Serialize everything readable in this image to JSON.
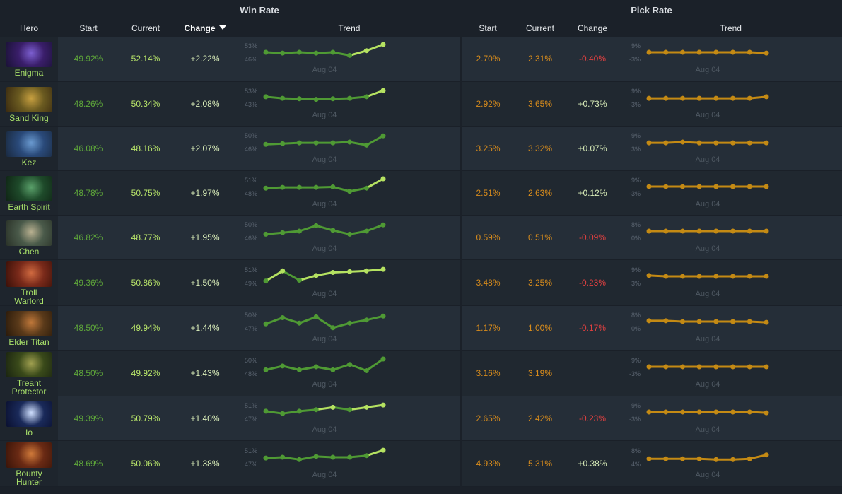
{
  "header": {
    "win_rate_group": "Win Rate",
    "pick_rate_group": "Pick Rate",
    "hero": "Hero",
    "start": "Start",
    "current": "Current",
    "change": "Change",
    "trend": "Trend"
  },
  "colors": {
    "win_line": "#4f9a34",
    "win_dot_highlight": "#b5e261",
    "pick_line": "#c48a14",
    "positive": "#d8ecb8",
    "negative": "#e04040"
  },
  "rows": [
    {
      "hero": "Enigma",
      "portrait": [
        "#3a1e6a",
        "#7c5fd0",
        "#1a1236"
      ],
      "wr_start": "49.92%",
      "wr_current": "52.14%",
      "wr_change": "+2.22%",
      "wr_hi": "53%",
      "wr_lo": "46%",
      "wr_date": "Aug 04",
      "wr_points": [
        0.5,
        0.45,
        0.5,
        0.45,
        0.5,
        0.3,
        0.6,
        1.0
      ],
      "wr_hot": [
        6,
        7
      ],
      "pr_start": "2.70%",
      "pr_current": "2.31%",
      "pr_change": "-0.40%",
      "pr_change_sign": "neg",
      "pr_hi": "9%",
      "pr_lo": "-3%",
      "pr_date": "Aug 04",
      "pr_points": [
        0.5,
        0.5,
        0.5,
        0.5,
        0.5,
        0.5,
        0.5,
        0.45
      ]
    },
    {
      "hero": "Sand King",
      "portrait": [
        "#6a5a20",
        "#c8a040",
        "#3a2a10"
      ],
      "wr_start": "48.26%",
      "wr_current": "50.34%",
      "wr_change": "+2.08%",
      "wr_hi": "53%",
      "wr_lo": "43%",
      "wr_date": "Aug 04",
      "wr_points": [
        0.55,
        0.45,
        0.42,
        0.38,
        0.42,
        0.45,
        0.55,
        0.95
      ],
      "wr_hot": [
        7
      ],
      "pr_start": "2.92%",
      "pr_current": "3.65%",
      "pr_change": "+0.73%",
      "pr_change_sign": "pos",
      "pr_hi": "9%",
      "pr_lo": "-3%",
      "pr_date": "Aug 04",
      "pr_points": [
        0.45,
        0.45,
        0.45,
        0.45,
        0.45,
        0.45,
        0.45,
        0.55
      ]
    },
    {
      "hero": "Kez",
      "portrait": [
        "#2a4a7a",
        "#6a9ad0",
        "#1a2a40"
      ],
      "wr_start": "46.08%",
      "wr_current": "48.16%",
      "wr_change": "+2.07%",
      "wr_hi": "50%",
      "wr_lo": "46%",
      "wr_date": "Aug 04",
      "wr_points": [
        0.35,
        0.4,
        0.45,
        0.45,
        0.45,
        0.5,
        0.3,
        0.9
      ],
      "wr_hot": [],
      "pr_start": "3.25%",
      "pr_current": "3.32%",
      "pr_change": "+0.07%",
      "pr_change_sign": "pos",
      "pr_hi": "9%",
      "pr_lo": "3%",
      "pr_date": "Aug 04",
      "pr_points": [
        0.45,
        0.45,
        0.5,
        0.45,
        0.45,
        0.45,
        0.45,
        0.45
      ]
    },
    {
      "hero": "Earth Spirit",
      "portrait": [
        "#1e4a2a",
        "#5aa06a",
        "#0f2414"
      ],
      "wr_start": "48.78%",
      "wr_current": "50.75%",
      "wr_change": "+1.97%",
      "wr_hi": "51%",
      "wr_lo": "48%",
      "wr_date": "Aug 04",
      "wr_points": [
        0.4,
        0.45,
        0.45,
        0.45,
        0.48,
        0.2,
        0.4,
        1.0
      ],
      "wr_hot": [
        7
      ],
      "pr_start": "2.51%",
      "pr_current": "2.63%",
      "pr_change": "+0.12%",
      "pr_change_sign": "pos",
      "pr_hi": "9%",
      "pr_lo": "-3%",
      "pr_date": "Aug 04",
      "pr_points": [
        0.5,
        0.5,
        0.5,
        0.5,
        0.5,
        0.5,
        0.5,
        0.5
      ]
    },
    {
      "hero": "Chen",
      "portrait": [
        "#4a5a4a",
        "#b8b090",
        "#2a3228"
      ],
      "wr_start": "46.82%",
      "wr_current": "48.77%",
      "wr_change": "+1.95%",
      "wr_hi": "50%",
      "wr_lo": "46%",
      "wr_date": "Aug 04",
      "wr_points": [
        0.3,
        0.4,
        0.5,
        0.85,
        0.55,
        0.3,
        0.5,
        0.9
      ],
      "wr_hot": [],
      "pr_start": "0.59%",
      "pr_current": "0.51%",
      "pr_change": "-0.09%",
      "pr_change_sign": "neg",
      "pr_hi": "8%",
      "pr_lo": "0%",
      "pr_date": "Aug 04",
      "pr_points": [
        0.5,
        0.5,
        0.5,
        0.5,
        0.5,
        0.5,
        0.5,
        0.5
      ]
    },
    {
      "hero": "Troll Warlord",
      "portrait": [
        "#7a2a1a",
        "#d06a40",
        "#3a1008"
      ],
      "wr_start": "49.36%",
      "wr_current": "50.86%",
      "wr_change": "+1.50%",
      "wr_hi": "51%",
      "wr_lo": "49%",
      "wr_date": "Aug 04",
      "wr_points": [
        0.2,
        0.85,
        0.25,
        0.55,
        0.75,
        0.8,
        0.85,
        0.95
      ],
      "wr_hot": [
        1,
        3,
        4,
        5,
        6,
        7
      ],
      "pr_start": "3.48%",
      "pr_current": "3.25%",
      "pr_change": "-0.23%",
      "pr_change_sign": "neg",
      "pr_hi": "9%",
      "pr_lo": "3%",
      "pr_date": "Aug 04",
      "pr_points": [
        0.55,
        0.5,
        0.5,
        0.5,
        0.5,
        0.5,
        0.5,
        0.5
      ]
    },
    {
      "hero": "Elder Titan",
      "portrait": [
        "#5a3a1a",
        "#c0783a",
        "#2a1a0a"
      ],
      "wr_start": "48.50%",
      "wr_current": "49.94%",
      "wr_change": "+1.44%",
      "wr_hi": "50%",
      "wr_lo": "47%",
      "wr_date": "Aug 04",
      "wr_points": [
        0.35,
        0.75,
        0.4,
        0.8,
        0.1,
        0.4,
        0.6,
        0.85
      ],
      "wr_hot": [],
      "pr_start": "1.17%",
      "pr_current": "1.00%",
      "pr_change": "-0.17%",
      "pr_change_sign": "neg",
      "pr_hi": "8%",
      "pr_lo": "0%",
      "pr_date": "Aug 04",
      "pr_points": [
        0.55,
        0.55,
        0.5,
        0.5,
        0.5,
        0.5,
        0.5,
        0.45
      ]
    },
    {
      "hero": "Treant Protector",
      "portrait": [
        "#3a4a1a",
        "#a0a050",
        "#1a2410"
      ],
      "wr_start": "48.50%",
      "wr_current": "49.92%",
      "wr_change": "+1.43%",
      "wr_hi": "50%",
      "wr_lo": "48%",
      "wr_date": "Aug 04",
      "wr_points": [
        0.3,
        0.55,
        0.3,
        0.5,
        0.3,
        0.65,
        0.25,
        1.0
      ],
      "wr_hot": [],
      "pr_start": "3.16%",
      "pr_current": "3.19%",
      "pr_change": "",
      "pr_change_sign": "pos",
      "pr_hi": "9%",
      "pr_lo": "-3%",
      "pr_date": "Aug 04",
      "pr_points": [
        0.5,
        0.5,
        0.5,
        0.5,
        0.5,
        0.5,
        0.5,
        0.5
      ]
    },
    {
      "hero": "Io",
      "portrait": [
        "#1a2a5a",
        "#d0e0ff",
        "#0a1030"
      ],
      "wr_start": "49.39%",
      "wr_current": "50.79%",
      "wr_change": "+1.40%",
      "wr_hi": "51%",
      "wr_lo": "47%",
      "wr_date": "Aug 04",
      "wr_points": [
        0.55,
        0.4,
        0.55,
        0.65,
        0.8,
        0.65,
        0.8,
        0.95
      ],
      "wr_hot": [
        4,
        6,
        7
      ],
      "pr_start": "2.65%",
      "pr_current": "2.42%",
      "pr_change": "-0.23%",
      "pr_change_sign": "neg",
      "pr_hi": "9%",
      "pr_lo": "-3%",
      "pr_date": "Aug 04",
      "pr_points": [
        0.5,
        0.5,
        0.5,
        0.5,
        0.5,
        0.5,
        0.5,
        0.45
      ]
    },
    {
      "hero": "Bounty Hunter",
      "portrait": [
        "#6a2a14",
        "#d07a3a",
        "#3a1408"
      ],
      "wr_start": "48.69%",
      "wr_current": "50.06%",
      "wr_change": "+1.38%",
      "wr_hi": "51%",
      "wr_lo": "47%",
      "wr_date": "Aug 04",
      "wr_points": [
        0.45,
        0.5,
        0.35,
        0.55,
        0.5,
        0.5,
        0.6,
        0.95
      ],
      "wr_hot": [
        7
      ],
      "pr_start": "4.93%",
      "pr_current": "5.31%",
      "pr_change": "+0.38%",
      "pr_change_sign": "pos",
      "pr_hi": "8%",
      "pr_lo": "4%",
      "pr_date": "Aug 04",
      "pr_points": [
        0.4,
        0.4,
        0.4,
        0.4,
        0.35,
        0.35,
        0.4,
        0.65
      ]
    }
  ]
}
